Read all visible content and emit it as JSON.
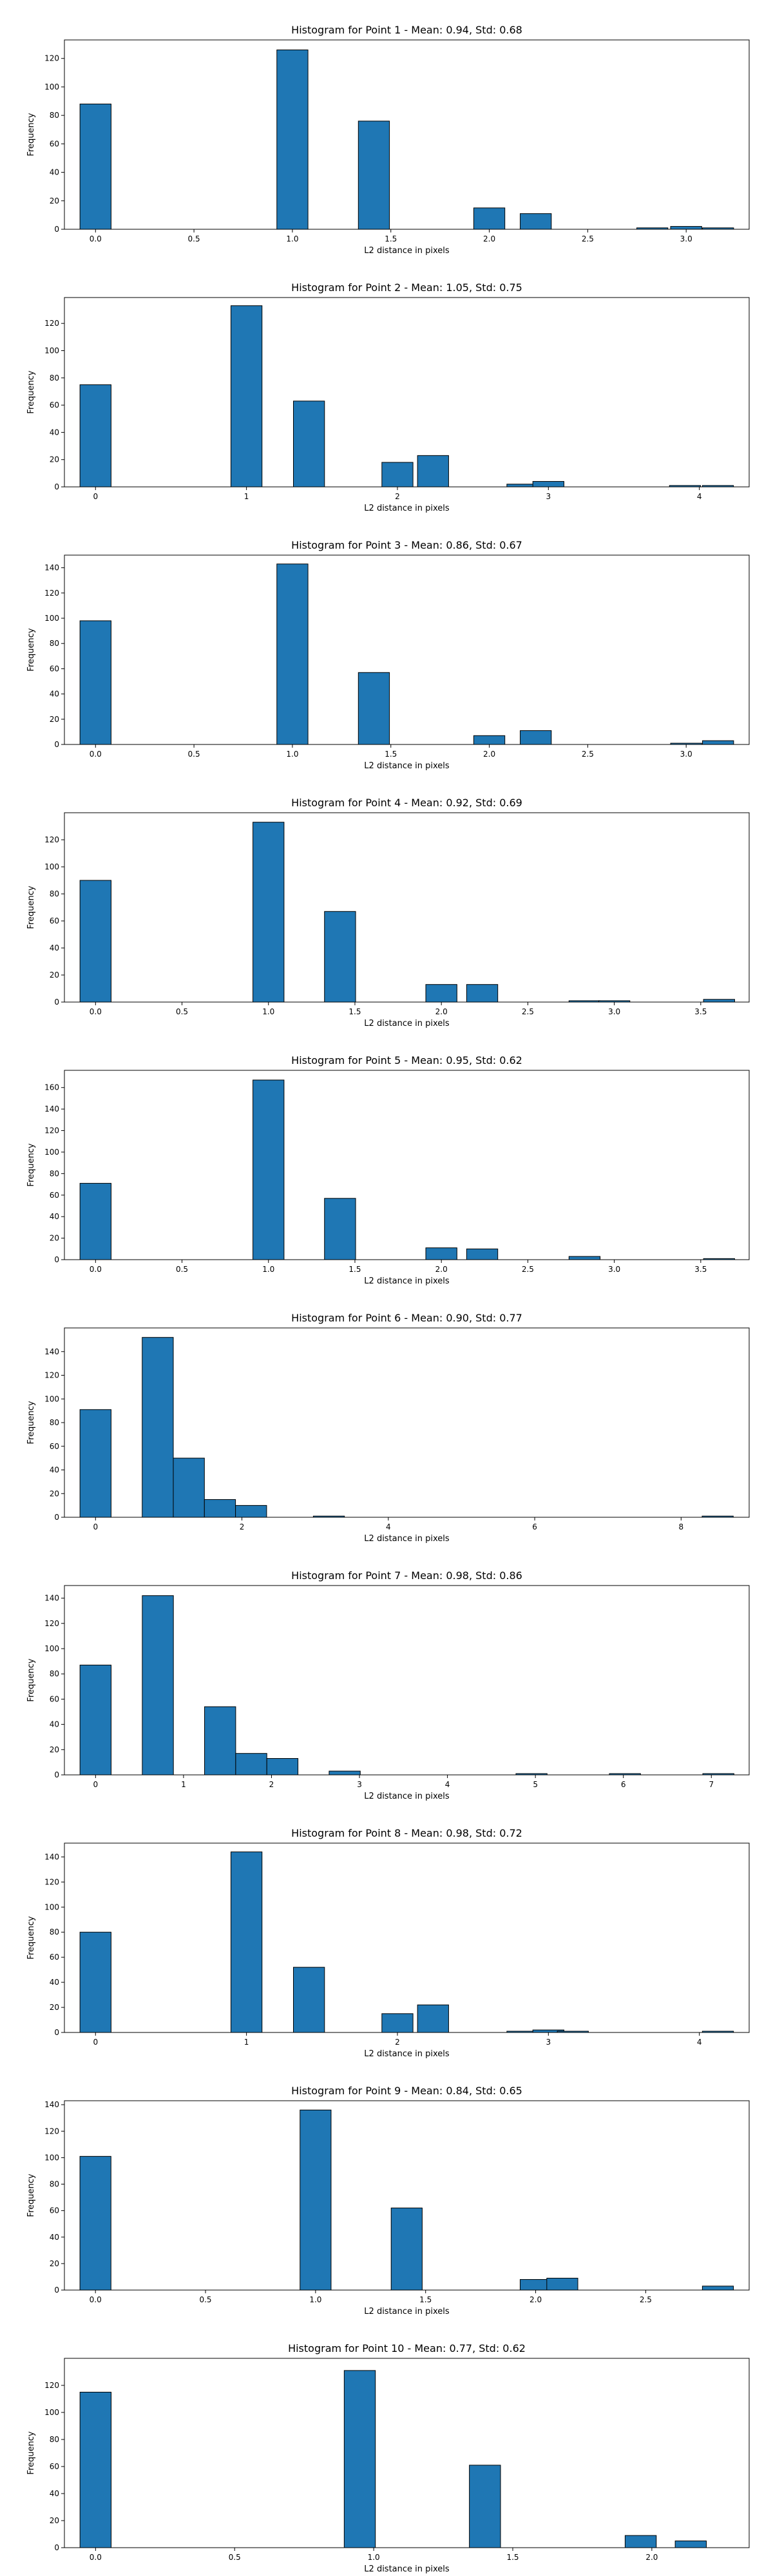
{
  "chart_data": [
    {
      "type": "bar",
      "title": "Histogram for Point 1 - Mean: 0.94, Std: 0.68",
      "xlabel": "L2 distance in pixels",
      "ylabel": "Frequency",
      "xlim": [
        -0.158,
        3.32
      ],
      "ylim": [
        0,
        133
      ],
      "xticks": [
        "0.0",
        "0.5",
        "1.0",
        "1.5",
        "2.0",
        "2.5",
        "3.0"
      ],
      "xtick_values": [
        0,
        0.5,
        1.0,
        1.5,
        2.0,
        2.5,
        3.0
      ],
      "yticks": [
        "0",
        "20",
        "40",
        "60",
        "80",
        "100",
        "120"
      ],
      "ytick_values": [
        0,
        20,
        40,
        60,
        80,
        100,
        120
      ],
      "bin_width": 0.158,
      "bars": [
        {
          "x": 0.0,
          "value": 88
        },
        {
          "x": 1.0,
          "value": 126
        },
        {
          "x": 1.414,
          "value": 76
        },
        {
          "x": 2.0,
          "value": 15
        },
        {
          "x": 2.236,
          "value": 11
        },
        {
          "x": 2.828,
          "value": 1
        },
        {
          "x": 3.0,
          "value": 2
        },
        {
          "x": 3.162,
          "value": 1
        }
      ],
      "grid": false
    },
    {
      "type": "bar",
      "title": "Histogram for Point 2 - Mean: 1.05, Std: 0.75",
      "xlabel": "L2 distance in pixels",
      "ylabel": "Frequency",
      "xlim": [
        -0.206,
        4.33
      ],
      "ylim": [
        0,
        139
      ],
      "xticks": [
        "0",
        "1",
        "2",
        "3",
        "4"
      ],
      "xtick_values": [
        0,
        1,
        2,
        3,
        4
      ],
      "yticks": [
        "0",
        "20",
        "40",
        "60",
        "80",
        "100",
        "120"
      ],
      "ytick_values": [
        0,
        20,
        40,
        60,
        80,
        100,
        120
      ],
      "bin_width": 0.206,
      "bars": [
        {
          "x": 0.0,
          "value": 75
        },
        {
          "x": 1.0,
          "value": 133
        },
        {
          "x": 1.414,
          "value": 63
        },
        {
          "x": 2.0,
          "value": 18
        },
        {
          "x": 2.236,
          "value": 23
        },
        {
          "x": 2.828,
          "value": 2
        },
        {
          "x": 3.0,
          "value": 4
        },
        {
          "x": 3.905,
          "value": 1
        },
        {
          "x": 4.123,
          "value": 1
        }
      ],
      "grid": false
    },
    {
      "type": "bar",
      "title": "Histogram for Point 3 - Mean: 0.86, Std: 0.67",
      "xlabel": "L2 distance in pixels",
      "ylabel": "Frequency",
      "xlim": [
        -0.158,
        3.32
      ],
      "ylim": [
        0,
        150
      ],
      "xticks": [
        "0.0",
        "0.5",
        "1.0",
        "1.5",
        "2.0",
        "2.5",
        "3.0"
      ],
      "xtick_values": [
        0,
        0.5,
        1.0,
        1.5,
        2.0,
        2.5,
        3.0
      ],
      "yticks": [
        "0",
        "20",
        "40",
        "60",
        "80",
        "100",
        "120",
        "140"
      ],
      "ytick_values": [
        0,
        20,
        40,
        60,
        80,
        100,
        120,
        140
      ],
      "bin_width": 0.158,
      "bars": [
        {
          "x": 0.0,
          "value": 98
        },
        {
          "x": 1.0,
          "value": 143
        },
        {
          "x": 1.414,
          "value": 57
        },
        {
          "x": 2.0,
          "value": 7
        },
        {
          "x": 2.236,
          "value": 11
        },
        {
          "x": 3.0,
          "value": 1
        },
        {
          "x": 3.162,
          "value": 3
        }
      ],
      "grid": false
    },
    {
      "type": "bar",
      "title": "Histogram for Point 4 - Mean: 0.92, Std: 0.69",
      "xlabel": "L2 distance in pixels",
      "ylabel": "Frequency",
      "xlim": [
        -0.18,
        3.78
      ],
      "ylim": [
        0,
        140
      ],
      "xticks": [
        "0.0",
        "0.5",
        "1.0",
        "1.5",
        "2.0",
        "2.5",
        "3.0",
        "3.5"
      ],
      "xtick_values": [
        0,
        0.5,
        1.0,
        1.5,
        2.0,
        2.5,
        3.0,
        3.5
      ],
      "yticks": [
        "0",
        "20",
        "40",
        "60",
        "80",
        "100",
        "120"
      ],
      "ytick_values": [
        0,
        20,
        40,
        60,
        80,
        100,
        120
      ],
      "bin_width": 0.18,
      "bars": [
        {
          "x": 0.0,
          "value": 90
        },
        {
          "x": 1.0,
          "value": 133
        },
        {
          "x": 1.414,
          "value": 67
        },
        {
          "x": 2.0,
          "value": 13
        },
        {
          "x": 2.236,
          "value": 13
        },
        {
          "x": 2.828,
          "value": 1
        },
        {
          "x": 3.0,
          "value": 1
        },
        {
          "x": 3.606,
          "value": 2
        }
      ],
      "grid": false
    },
    {
      "type": "bar",
      "title": "Histogram for Point 5 - Mean: 0.95, Std: 0.62",
      "xlabel": "L2 distance in pixels",
      "ylabel": "Frequency",
      "xlim": [
        -0.18,
        3.78
      ],
      "ylim": [
        0,
        176
      ],
      "xticks": [
        "0.0",
        "0.5",
        "1.0",
        "1.5",
        "2.0",
        "2.5",
        "3.0",
        "3.5"
      ],
      "xtick_values": [
        0,
        0.5,
        1.0,
        1.5,
        2.0,
        2.5,
        3.0,
        3.5
      ],
      "yticks": [
        "0",
        "20",
        "40",
        "60",
        "80",
        "100",
        "120",
        "140",
        "160"
      ],
      "ytick_values": [
        0,
        20,
        40,
        60,
        80,
        100,
        120,
        140,
        160
      ],
      "bin_width": 0.18,
      "bars": [
        {
          "x": 0.0,
          "value": 71
        },
        {
          "x": 1.0,
          "value": 167
        },
        {
          "x": 1.414,
          "value": 57
        },
        {
          "x": 2.0,
          "value": 11
        },
        {
          "x": 2.236,
          "value": 10
        },
        {
          "x": 2.828,
          "value": 3
        },
        {
          "x": 3.606,
          "value": 1
        }
      ],
      "grid": false
    },
    {
      "type": "bar",
      "title": "Histogram for Point 6 - Mean: 0.90, Std: 0.77",
      "xlabel": "L2 distance in pixels",
      "ylabel": "Frequency",
      "xlim": [
        -0.425,
        8.93
      ],
      "ylim": [
        0,
        160
      ],
      "xticks": [
        "0",
        "2",
        "4",
        "6",
        "8"
      ],
      "xtick_values": [
        0,
        2,
        4,
        6,
        8
      ],
      "yticks": [
        "0",
        "20",
        "40",
        "60",
        "80",
        "100",
        "120",
        "140"
      ],
      "ytick_values": [
        0,
        20,
        40,
        60,
        80,
        100,
        120,
        140
      ],
      "bin_width": 0.425,
      "bars": [
        {
          "x": 0.0,
          "value": 91
        },
        {
          "x": 0.85,
          "value": 152
        },
        {
          "x": 1.275,
          "value": 50
        },
        {
          "x": 1.7,
          "value": 15
        },
        {
          "x": 2.125,
          "value": 10
        },
        {
          "x": 3.188,
          "value": 1
        },
        {
          "x": 8.5,
          "value": 1
        }
      ],
      "grid": false
    },
    {
      "type": "bar",
      "title": "Histogram for Point 7 - Mean: 0.98, Std: 0.86",
      "xlabel": "L2 distance in pixels",
      "ylabel": "Frequency",
      "xlim": [
        -0.354,
        7.43
      ],
      "ylim": [
        0,
        150
      ],
      "xticks": [
        "0",
        "1",
        "2",
        "3",
        "4",
        "5",
        "6",
        "7"
      ],
      "xtick_values": [
        0,
        1,
        2,
        3,
        4,
        5,
        6,
        7
      ],
      "yticks": [
        "0",
        "20",
        "40",
        "60",
        "80",
        "100",
        "120",
        "140"
      ],
      "ytick_values": [
        0,
        20,
        40,
        60,
        80,
        100,
        120,
        140
      ],
      "bin_width": 0.354,
      "bars": [
        {
          "x": 0.0,
          "value": 87
        },
        {
          "x": 0.708,
          "value": 142
        },
        {
          "x": 1.416,
          "value": 54
        },
        {
          "x": 1.77,
          "value": 17
        },
        {
          "x": 2.124,
          "value": 13
        },
        {
          "x": 2.832,
          "value": 3
        },
        {
          "x": 4.956,
          "value": 1
        },
        {
          "x": 6.018,
          "value": 1
        },
        {
          "x": 7.08,
          "value": 1
        }
      ],
      "grid": false
    },
    {
      "type": "bar",
      "title": "Histogram for Point 8 - Mean: 0.98, Std: 0.72",
      "xlabel": "L2 distance in pixels",
      "ylabel": "Frequency",
      "xlim": [
        -0.206,
        4.33
      ],
      "ylim": [
        0,
        151
      ],
      "xticks": [
        "0",
        "1",
        "2",
        "3",
        "4"
      ],
      "xtick_values": [
        0,
        1,
        2,
        3,
        4
      ],
      "yticks": [
        "0",
        "20",
        "40",
        "60",
        "80",
        "100",
        "120",
        "140"
      ],
      "ytick_values": [
        0,
        20,
        40,
        60,
        80,
        100,
        120,
        140
      ],
      "bin_width": 0.206,
      "bars": [
        {
          "x": 0.0,
          "value": 80
        },
        {
          "x": 1.0,
          "value": 144
        },
        {
          "x": 1.414,
          "value": 52
        },
        {
          "x": 2.0,
          "value": 15
        },
        {
          "x": 2.236,
          "value": 22
        },
        {
          "x": 2.828,
          "value": 1
        },
        {
          "x": 3.0,
          "value": 2
        },
        {
          "x": 3.162,
          "value": 1
        },
        {
          "x": 4.123,
          "value": 1
        }
      ],
      "grid": false
    },
    {
      "type": "bar",
      "title": "Histogram for Point 9 - Mean: 0.84, Std: 0.65",
      "xlabel": "L2 distance in pixels",
      "ylabel": "Frequency",
      "xlim": [
        -0.141,
        2.97
      ],
      "ylim": [
        0,
        143
      ],
      "xticks": [
        "0.0",
        "0.5",
        "1.0",
        "1.5",
        "2.0",
        "2.5"
      ],
      "xtick_values": [
        0,
        0.5,
        1.0,
        1.5,
        2.0,
        2.5
      ],
      "yticks": [
        "0",
        "20",
        "40",
        "60",
        "80",
        "100",
        "120",
        "140"
      ],
      "ytick_values": [
        0,
        20,
        40,
        60,
        80,
        100,
        120,
        140
      ],
      "bin_width": 0.141,
      "bars": [
        {
          "x": 0.0,
          "value": 101
        },
        {
          "x": 1.0,
          "value": 136
        },
        {
          "x": 1.414,
          "value": 62
        },
        {
          "x": 2.0,
          "value": 8
        },
        {
          "x": 2.121,
          "value": 9
        },
        {
          "x": 2.828,
          "value": 3
        }
      ],
      "grid": false
    },
    {
      "type": "bar",
      "title": "Histogram for Point 10 - Mean: 0.77, Std: 0.62",
      "xlabel": "L2 distance in pixels",
      "ylabel": "Frequency",
      "xlim": [
        -0.112,
        2.35
      ],
      "ylim": [
        0,
        140
      ],
      "xticks": [
        "0.0",
        "0.5",
        "1.0",
        "1.5",
        "2.0"
      ],
      "xtick_values": [
        0,
        0.5,
        1.0,
        1.5,
        2.0
      ],
      "yticks": [
        "0",
        "20",
        "40",
        "60",
        "80",
        "100",
        "120"
      ],
      "ytick_values": [
        0,
        20,
        40,
        60,
        80,
        100,
        120
      ],
      "bin_width": 0.112,
      "bars": [
        {
          "x": 0.0,
          "value": 115
        },
        {
          "x": 0.95,
          "value": 131
        },
        {
          "x": 1.4,
          "value": 61
        },
        {
          "x": 1.96,
          "value": 9
        },
        {
          "x": 2.14,
          "value": 5
        }
      ],
      "grid": false
    }
  ]
}
